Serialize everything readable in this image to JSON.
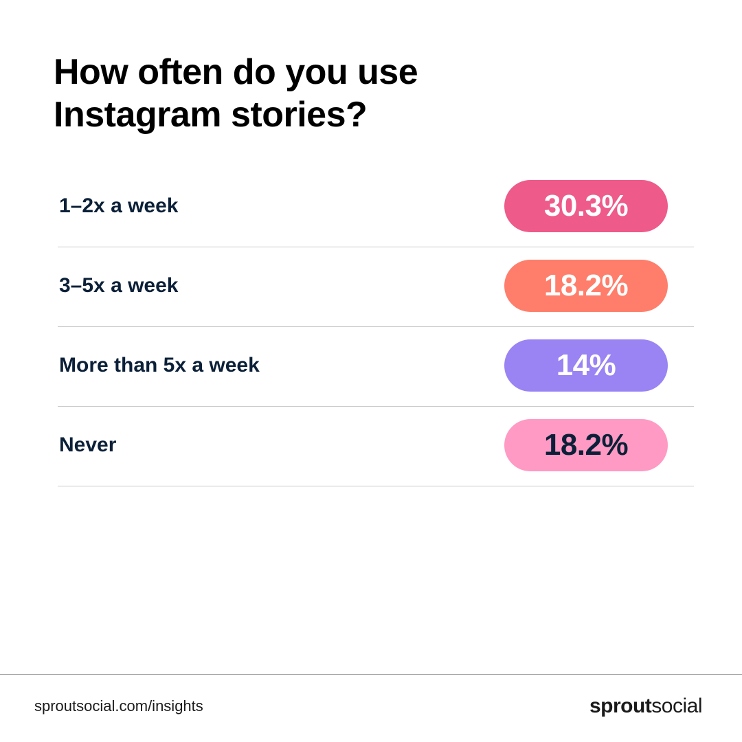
{
  "chart_data": {
    "type": "bar",
    "title": "How often do you use Instagram stories?",
    "title_lines": [
      "How often do you use",
      "Instagram stories?"
    ],
    "categories": [
      "1–2x a week",
      "3–5x a week",
      "More than 5x a week",
      "Never"
    ],
    "values": [
      30.3,
      18.2,
      14,
      18.2
    ],
    "value_labels": [
      "30.3%",
      "18.2%",
      "14%",
      "18.2%"
    ],
    "colors": [
      "#ee5a8a",
      "#ff7e6b",
      "#9a83f3",
      "#ff9ac4"
    ],
    "label_colors": [
      "#ffffff",
      "#ffffff",
      "#ffffff",
      "#0b2038"
    ],
    "xlabel": "",
    "ylabel": ""
  },
  "footer": {
    "url": "sproutsocial.com/insights",
    "brand_bold": "sprout",
    "brand_light": "social"
  }
}
